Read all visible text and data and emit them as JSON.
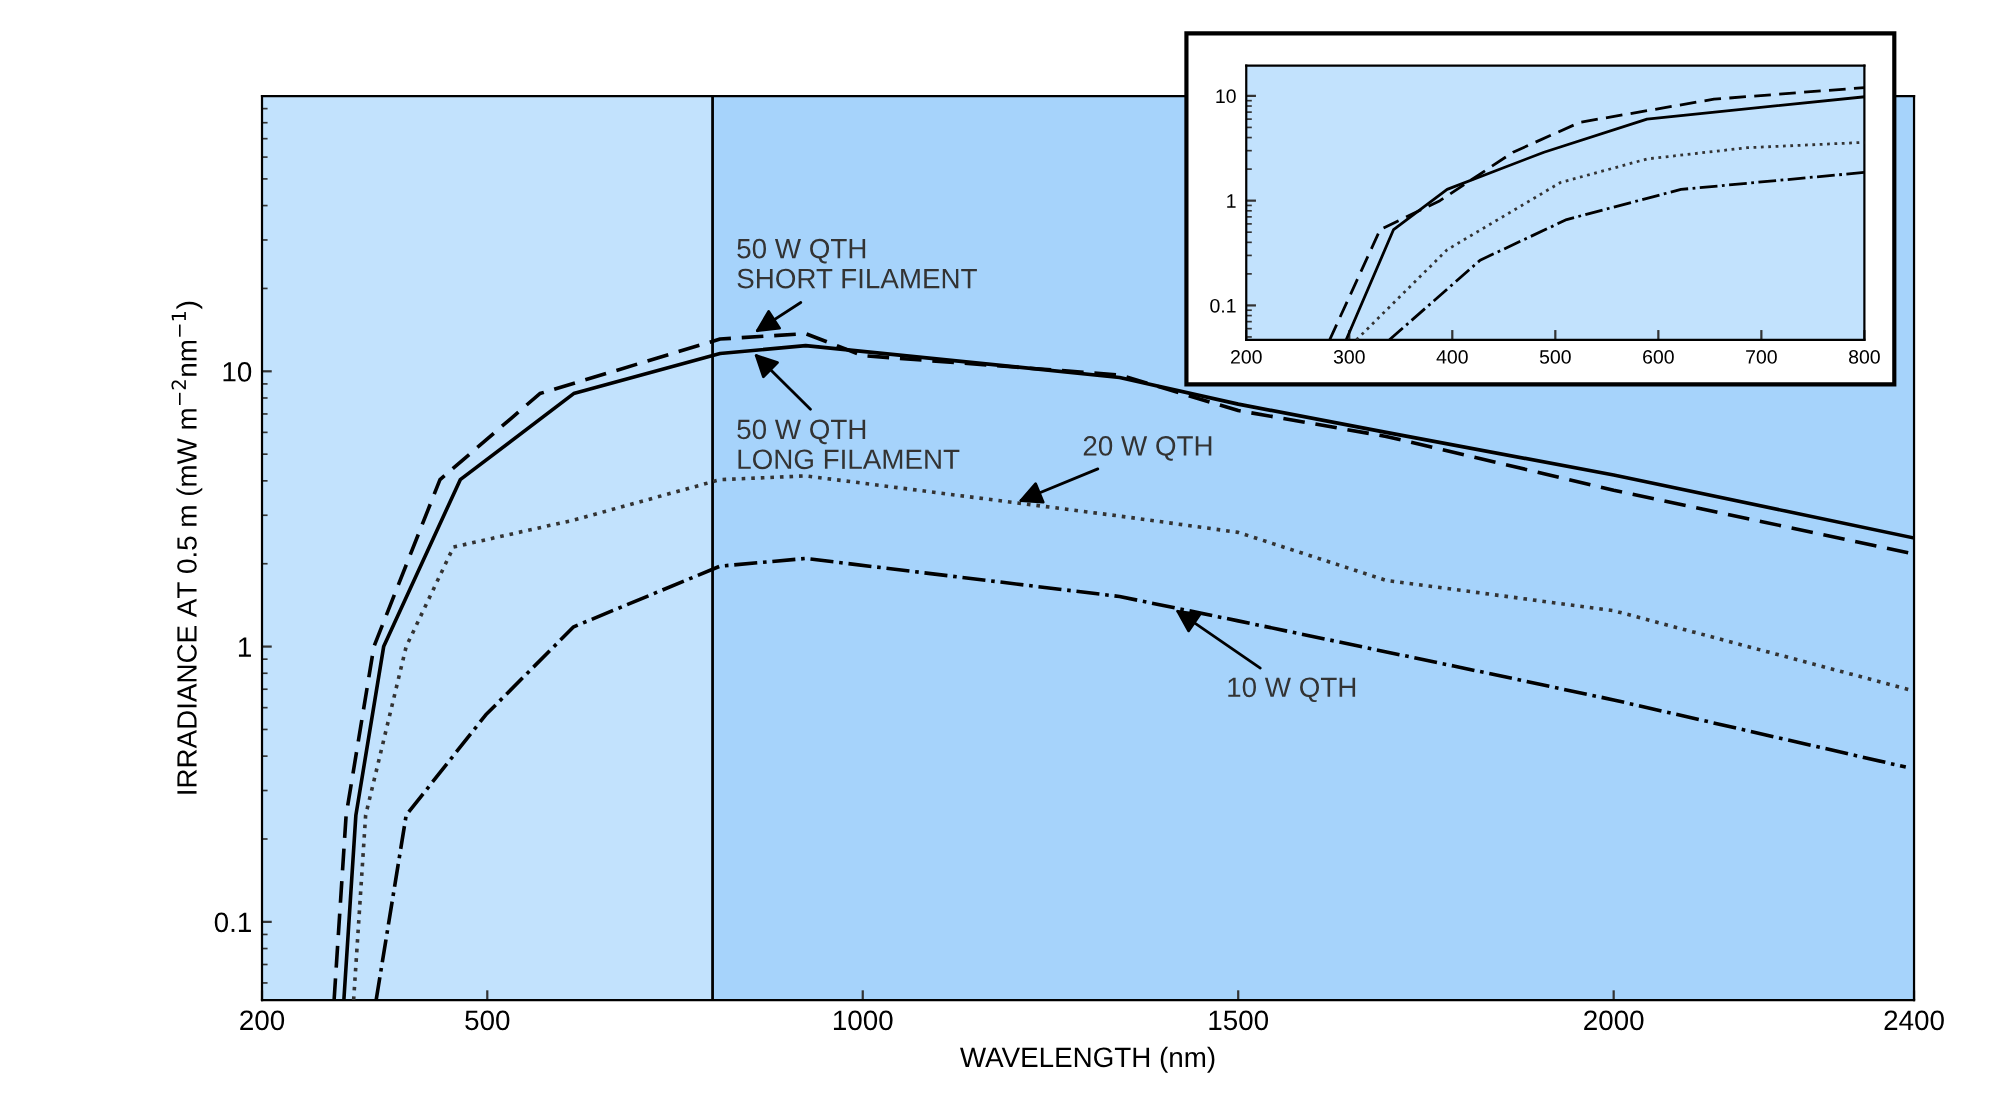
{
  "chart_data": [
    {
      "type": "line",
      "xlabel": "WAVELENGTH (nm)",
      "ylabel": "IRRADIANCE AT 0.5 m (mW m$^{−2}$nm$^{−1}$)",
      "log": "y",
      "xlim": [
        200,
        2400
      ],
      "ylim": [
        0.052,
        100
      ],
      "xticks": [
        200,
        500,
        1000,
        1500,
        2000,
        2400
      ],
      "yticks": [
        0.1,
        1,
        10
      ],
      "grid": false,
      "legend": false,
      "bands": [
        {
          "axis": "x",
          "from": 200,
          "to": 800,
          "color": "#c2e2fd"
        }
      ],
      "ref_lines": [
        {
          "axis": "x",
          "value": 800,
          "color": "#000000"
        }
      ],
      "series": [
        {
          "color": "#000000",
          "line_style": "dashed",
          "x": [
            296,
            312,
            349,
            437,
            570,
            810,
            924,
            1000,
            1342,
            1500,
            1697,
            2000,
            2400
          ],
          "values": [
            0.052,
            0.244,
            1.0,
            4.04,
            8.3,
            13.1,
            13.7,
            11.4,
            9.7,
            7.2,
            5.8,
            3.7,
            2.17
          ]
        },
        {
          "color": "#000000",
          "line_style": "solid",
          "x": [
            309,
            325,
            362,
            464,
            615,
            810,
            924,
            1342,
            1500,
            1697,
            2000,
            2400
          ],
          "values": [
            0.052,
            0.244,
            1.0,
            4.04,
            8.3,
            11.6,
            12.4,
            9.5,
            7.6,
            6.0,
            4.2,
            2.48
          ]
        },
        {
          "color": "#333333",
          "line_style": "dotted",
          "x": [
            322,
            338,
            392,
            455,
            615,
            810,
            924,
            1342,
            1500,
            1697,
            2000,
            2400
          ],
          "values": [
            0.052,
            0.244,
            1.0,
            2.3,
            2.88,
            4.04,
            4.17,
            2.98,
            2.6,
            1.74,
            1.35,
            0.69
          ]
        },
        {
          "color": "#000000",
          "line_style": "dashdot",
          "x": [
            352,
            392,
            498,
            615,
            810,
            924,
            1342,
            1500,
            1787,
            2000,
            2389
          ],
          "values": [
            0.052,
            0.244,
            0.565,
            1.18,
            1.96,
            2.09,
            1.52,
            1.24,
            0.85,
            0.64,
            0.365
          ]
        }
      ],
      "annotations": [
        {
          "text": "50 W QTH\nSHORT FILAMENT",
          "x": 850,
          "y": 13.5
        },
        {
          "text": "50 W QTH\nLONG FILAMENT",
          "x": 850,
          "y": 12.0
        },
        {
          "text": "20 W QTH",
          "x": 1200,
          "y": 3.3
        },
        {
          "text": "10 W QTH",
          "x": 1410,
          "y": 1.4
        }
      ]
    },
    {
      "type": "line",
      "log": "y",
      "xlim": [
        200,
        800
      ],
      "ylim": [
        0.047,
        19.4
      ],
      "xticks": [
        200,
        300,
        400,
        500,
        600,
        700,
        800
      ],
      "yticks": [
        0.1,
        1,
        10
      ],
      "grid": false,
      "legend": false,
      "series": [
        {
          "color": "#000000",
          "line_style": "dashed",
          "x": [
            281,
            330,
            388,
            459,
            524,
            654,
            800
          ],
          "values": [
            0.047,
            0.53,
            1.0,
            2.9,
            5.6,
            9.3,
            12.0
          ]
        },
        {
          "color": "#000000",
          "line_style": "solid",
          "x": [
            297,
            343,
            395,
            489,
            589,
            800
          ],
          "values": [
            0.047,
            0.53,
            1.28,
            2.9,
            6.0,
            9.8
          ]
        },
        {
          "color": "#333333",
          "line_style": "dotted",
          "x": [
            307,
            395,
            505,
            589,
            686,
            800
          ],
          "values": [
            0.047,
            0.34,
            1.49,
            2.5,
            3.2,
            3.6
          ]
        },
        {
          "color": "#000000",
          "line_style": "dashdot",
          "x": [
            339,
            427,
            511,
            622,
            800
          ],
          "values": [
            0.047,
            0.27,
            0.66,
            1.28,
            1.86
          ]
        }
      ]
    }
  ]
}
